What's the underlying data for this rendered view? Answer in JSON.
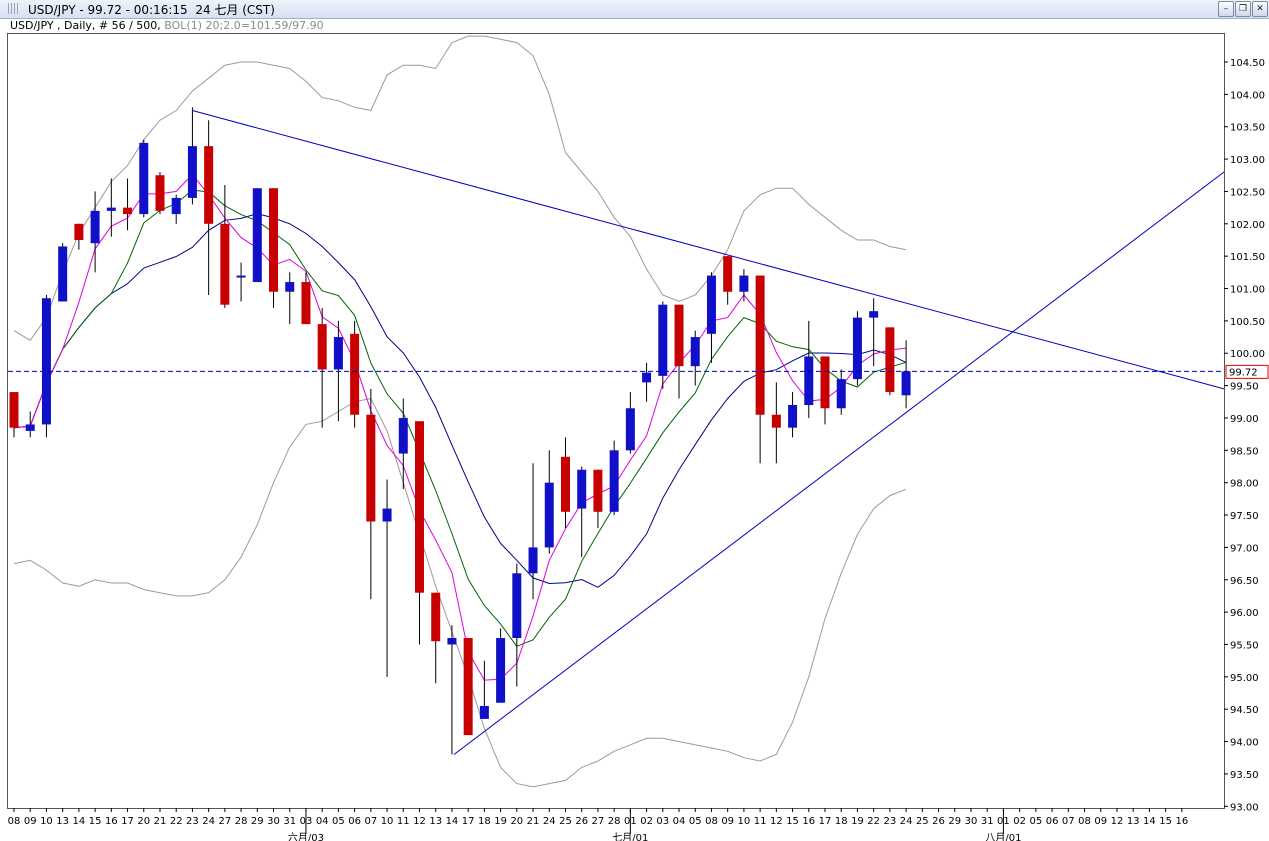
{
  "window": {
    "title": "USD/JPY - 99.72 - 00:16:15  24 七月 (CST)",
    "buttons": [
      "minimize-icon",
      "restore-icon",
      "close-icon"
    ]
  },
  "info": {
    "symbol": "USD/JPY , Daily, # 56 / 500,",
    "indicator": "BOL(1) 20;2.0=101.59/97.90"
  },
  "colors": {
    "bull": "#1010c8",
    "bear": "#c80000",
    "upper_band": "#9a9a9a",
    "ma_blue": "#00008b",
    "ma_magenta": "#e000e0",
    "ma_green": "#006400",
    "trendline": "#0000c0",
    "price_line": "#0000c0"
  },
  "chart_data": {
    "type": "candlestick",
    "title": "USD/JPY",
    "current_price": 99.72,
    "current_price_label": "99.72",
    "ylim": [
      93.0,
      104.5
    ],
    "yticks": [
      104.5,
      104.0,
      103.5,
      103.0,
      102.5,
      102.0,
      101.5,
      101.0,
      100.5,
      100.0,
      99.5,
      99.0,
      98.5,
      98.0,
      97.5,
      97.0,
      96.5,
      96.0,
      95.5,
      95.0,
      94.5,
      94.0,
      93.5,
      93.0
    ],
    "ytick_labels": [
      "104.50",
      "104.00",
      "103.50",
      "103.00",
      "102.50",
      "102.00",
      "101.50",
      "101.00",
      "100.50",
      "100.00",
      "99.50",
      "99.00",
      "98.50",
      "98.00",
      "97.50",
      "97.00",
      "96.50",
      "96.00",
      "95.50",
      "95.00",
      "94.50",
      "94.00",
      "93.50",
      "93.00"
    ],
    "xtick_labels": [
      "08",
      "09",
      "10",
      "13",
      "14",
      "15",
      "16",
      "17",
      "20",
      "21",
      "22",
      "23",
      "24",
      "27",
      "28",
      "29",
      "30",
      "31",
      "01",
      "02",
      "03",
      "04",
      "05",
      "06",
      "07",
      "08",
      "09",
      "10",
      "11",
      "12",
      "13",
      "14",
      "15",
      "16"
    ],
    "month_labels": [
      "六月/03",
      "七月/01",
      "八月/01"
    ],
    "x_dates_to_future": [
      "25",
      "26",
      "29",
      "30",
      "31",
      "01",
      "02",
      "05",
      "06",
      "07",
      "08",
      "09",
      "12",
      "13",
      "14",
      "15",
      "16"
    ],
    "candles": [
      {
        "date": "08",
        "o": 99.4,
        "h": 99.4,
        "l": 98.7,
        "c": 98.85
      },
      {
        "date": "09",
        "o": 98.8,
        "h": 99.1,
        "l": 98.7,
        "c": 98.9
      },
      {
        "date": "10",
        "o": 98.9,
        "h": 100.9,
        "l": 98.7,
        "c": 100.85
      },
      {
        "date": "13",
        "o": 100.8,
        "h": 101.7,
        "l": 100.8,
        "c": 101.65
      },
      {
        "date": "14",
        "o": 102.0,
        "h": 102.0,
        "l": 101.6,
        "c": 101.75
      },
      {
        "date": "15",
        "o": 101.7,
        "h": 102.5,
        "l": 101.25,
        "c": 102.2
      },
      {
        "date": "16",
        "o": 102.2,
        "h": 102.7,
        "l": 101.8,
        "c": 102.25
      },
      {
        "date": "17",
        "o": 102.25,
        "h": 102.7,
        "l": 101.9,
        "c": 102.15
      },
      {
        "date": "20",
        "o": 102.15,
        "h": 103.3,
        "l": 102.1,
        "c": 103.25
      },
      {
        "date": "21",
        "o": 102.75,
        "h": 102.8,
        "l": 102.15,
        "c": 102.2
      },
      {
        "date": "22",
        "o": 102.15,
        "h": 102.45,
        "l": 102.0,
        "c": 102.4
      },
      {
        "date": "23",
        "o": 102.4,
        "h": 103.8,
        "l": 102.3,
        "c": 103.2
      },
      {
        "date": "24",
        "o": 103.2,
        "h": 103.6,
        "l": 100.9,
        "c": 102.0
      },
      {
        "date": "27",
        "o": 102.0,
        "h": 102.6,
        "l": 100.7,
        "c": 100.75
      },
      {
        "date": "28",
        "o": 101.2,
        "h": 101.4,
        "l": 100.8,
        "c": 101.2
      },
      {
        "date": "29",
        "o": 101.1,
        "h": 102.55,
        "l": 101.1,
        "c": 102.55
      },
      {
        "date": "30",
        "o": 102.55,
        "h": 102.55,
        "l": 100.7,
        "c": 100.95
      },
      {
        "date": "31",
        "o": 100.95,
        "h": 101.25,
        "l": 100.45,
        "c": 101.1
      },
      {
        "date": "03",
        "o": 101.1,
        "h": 101.25,
        "l": 100.45,
        "c": 100.45
      },
      {
        "date": "04",
        "o": 100.45,
        "h": 100.7,
        "l": 98.85,
        "c": 99.75
      },
      {
        "date": "05",
        "o": 99.75,
        "h": 100.5,
        "l": 98.95,
        "c": 100.25
      },
      {
        "date": "06",
        "o": 100.3,
        "h": 100.5,
        "l": 98.85,
        "c": 99.05
      },
      {
        "date": "07",
        "o": 99.05,
        "h": 99.45,
        "l": 96.2,
        "c": 97.4
      },
      {
        "date": "10",
        "o": 97.4,
        "h": 98.05,
        "l": 95.0,
        "c": 97.6
      },
      {
        "date": "11",
        "o": 98.45,
        "h": 99.3,
        "l": 97.9,
        "c": 99.0
      },
      {
        "date": "12",
        "o": 98.95,
        "h": 98.95,
        "l": 95.5,
        "c": 96.3
      },
      {
        "date": "13",
        "o": 96.3,
        "h": 96.3,
        "l": 94.9,
        "c": 95.55
      },
      {
        "date": "14",
        "o": 95.5,
        "h": 95.8,
        "l": 93.8,
        "c": 95.6
      },
      {
        "date": "17",
        "o": 95.6,
        "h": 95.6,
        "l": 94.1,
        "c": 94.1
      },
      {
        "date": "18",
        "o": 94.35,
        "h": 95.25,
        "l": 94.35,
        "c": 94.55
      },
      {
        "date": "19",
        "o": 94.6,
        "h": 95.75,
        "l": 94.6,
        "c": 95.6
      },
      {
        "date": "20",
        "o": 95.6,
        "h": 96.75,
        "l": 94.85,
        "c": 96.6
      },
      {
        "date": "21",
        "o": 96.6,
        "h": 98.3,
        "l": 96.2,
        "c": 97.0
      },
      {
        "date": "24",
        "o": 97.0,
        "h": 98.5,
        "l": 96.9,
        "c": 98.0
      },
      {
        "date": "25",
        "o": 98.4,
        "h": 98.7,
        "l": 97.3,
        "c": 97.55
      },
      {
        "date": "26",
        "o": 97.6,
        "h": 98.25,
        "l": 96.85,
        "c": 98.2
      },
      {
        "date": "27",
        "o": 98.2,
        "h": 98.2,
        "l": 97.3,
        "c": 97.55
      },
      {
        "date": "28",
        "o": 97.55,
        "h": 98.65,
        "l": 97.5,
        "c": 98.5
      },
      {
        "date": "01",
        "o": 98.5,
        "h": 99.4,
        "l": 98.45,
        "c": 99.15
      },
      {
        "date": "02",
        "o": 99.55,
        "h": 99.85,
        "l": 99.25,
        "c": 99.7
      },
      {
        "date": "03",
        "o": 99.65,
        "h": 100.8,
        "l": 99.45,
        "c": 100.75
      },
      {
        "date": "04",
        "o": 100.75,
        "h": 100.75,
        "l": 99.3,
        "c": 99.8
      },
      {
        "date": "05",
        "o": 99.8,
        "h": 100.35,
        "l": 99.5,
        "c": 100.25
      },
      {
        "date": "08",
        "o": 100.3,
        "h": 101.25,
        "l": 99.85,
        "c": 101.2
      },
      {
        "date": "09",
        "o": 101.5,
        "h": 101.5,
        "l": 100.75,
        "c": 100.95
      },
      {
        "date": "10",
        "o": 100.95,
        "h": 101.3,
        "l": 100.8,
        "c": 101.2
      },
      {
        "date": "11",
        "o": 101.2,
        "h": 101.2,
        "l": 98.3,
        "c": 99.05
      },
      {
        "date": "12",
        "o": 99.05,
        "h": 99.55,
        "l": 98.3,
        "c": 98.85
      },
      {
        "date": "15",
        "o": 98.85,
        "h": 99.4,
        "l": 98.7,
        "c": 99.2
      },
      {
        "date": "16",
        "o": 99.2,
        "h": 100.5,
        "l": 99.0,
        "c": 99.95
      },
      {
        "date": "17",
        "o": 99.95,
        "h": 99.95,
        "l": 98.9,
        "c": 99.15
      },
      {
        "date": "18",
        "o": 99.15,
        "h": 99.75,
        "l": 99.05,
        "c": 99.6
      },
      {
        "date": "19",
        "o": 99.6,
        "h": 100.65,
        "l": 99.5,
        "c": 100.55
      },
      {
        "date": "22",
        "o": 100.55,
        "h": 100.85,
        "l": 99.8,
        "c": 100.65
      },
      {
        "date": "23",
        "o": 100.4,
        "h": 100.4,
        "l": 99.35,
        "c": 99.4
      },
      {
        "date": "24",
        "o": 99.35,
        "h": 100.2,
        "l": 99.15,
        "c": 99.72
      }
    ],
    "upper_band": [
      100.35,
      100.2,
      100.55,
      101.25,
      101.85,
      102.25,
      102.65,
      102.9,
      103.3,
      103.6,
      103.75,
      104.05,
      104.25,
      104.45,
      104.5,
      104.5,
      104.45,
      104.4,
      104.2,
      103.95,
      103.9,
      103.8,
      103.75,
      104.3,
      104.45,
      104.45,
      104.4,
      104.8,
      104.9,
      104.9,
      104.85,
      104.8,
      104.6,
      104.0,
      103.1,
      102.8,
      102.5,
      102.1,
      101.8,
      101.3,
      100.9,
      100.8,
      100.9,
      101.2,
      101.6,
      102.2,
      102.45,
      102.55,
      102.55,
      102.3,
      102.1,
      101.9,
      101.75,
      101.75,
      101.65,
      101.6
    ],
    "lower_band": [
      96.75,
      96.8,
      96.65,
      96.45,
      96.4,
      96.5,
      96.45,
      96.45,
      96.35,
      96.3,
      96.25,
      96.25,
      96.3,
      96.5,
      96.85,
      97.35,
      98.0,
      98.55,
      98.9,
      98.95,
      99.1,
      99.25,
      99.3,
      98.8,
      98.0,
      97.2,
      96.4,
      95.7,
      95.0,
      94.2,
      93.6,
      93.35,
      93.3,
      93.35,
      93.4,
      93.6,
      93.7,
      93.85,
      93.95,
      94.05,
      94.05,
      94.0,
      93.95,
      93.9,
      93.85,
      93.75,
      93.7,
      93.8,
      94.3,
      95.0,
      95.9,
      96.6,
      97.2,
      97.6,
      97.8,
      97.9
    ]
  }
}
